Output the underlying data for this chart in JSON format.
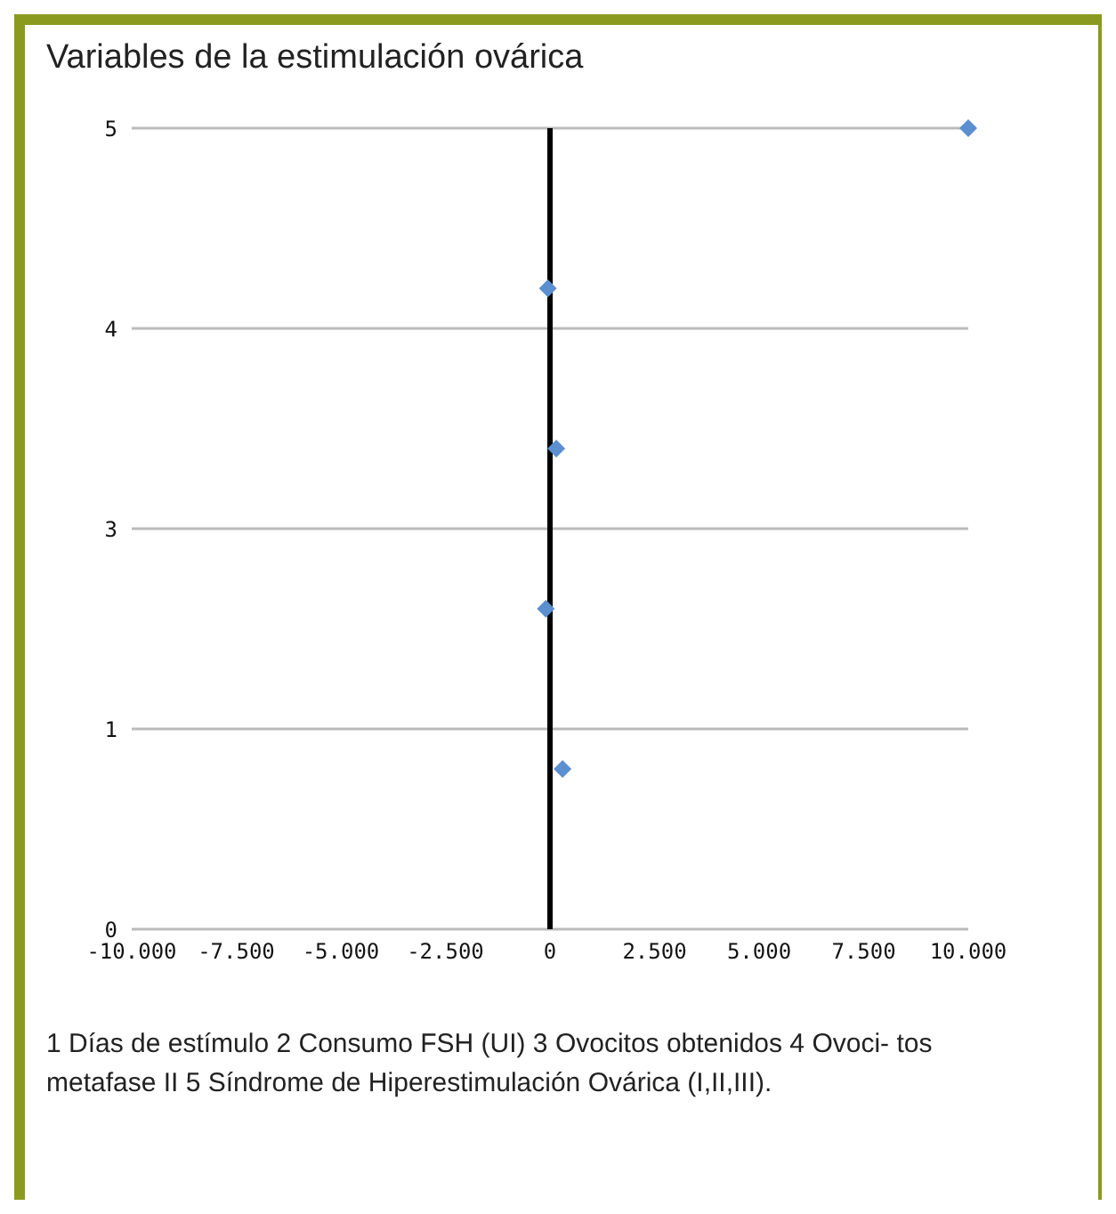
{
  "chart_data": {
    "type": "scatter",
    "title": "Variables de la estimulación ovárica",
    "x": [
      300,
      -100,
      150,
      -50,
      10000
    ],
    "series": [
      {
        "color": "#5b8fd0",
        "values": [
          1,
          2,
          3,
          4,
          5
        ]
      }
    ],
    "xlim": [
      -10000,
      10000
    ],
    "xticks": [
      {
        "value": -10000,
        "label": "-10.000"
      },
      {
        "value": -7500,
        "label": "-7.500"
      },
      {
        "value": -5000,
        "label": "-5.000"
      },
      {
        "value": -2500,
        "label": "-2.500"
      },
      0,
      {
        "value": 2500,
        "label": "2.500"
      },
      {
        "value": 5000,
        "label": "5.000"
      },
      {
        "value": 7500,
        "label": "7.500"
      },
      {
        "value": 10000,
        "label": "10.000"
      }
    ],
    "ylim": [
      0,
      5
    ],
    "yticks": [
      0,
      {
        "value": 1.25,
        "label": "1"
      },
      {
        "value": 2.5,
        "label": "3"
      },
      {
        "value": 3.75,
        "label": "4"
      },
      5
    ],
    "grid": "y",
    "marker": "diamond",
    "legend": false,
    "ref_lines": [
      {
        "axis": "x",
        "value": 0,
        "color": "#000000"
      }
    ],
    "annotations": [
      "1 Días de estímulo  2 Consumo FSH (UI) 3 Ovocitos obtenidos  4 Ovoci- tos metafase II 5 Síndrome de Hiperestimulación Ovárica (I,II,III)."
    ]
  }
}
